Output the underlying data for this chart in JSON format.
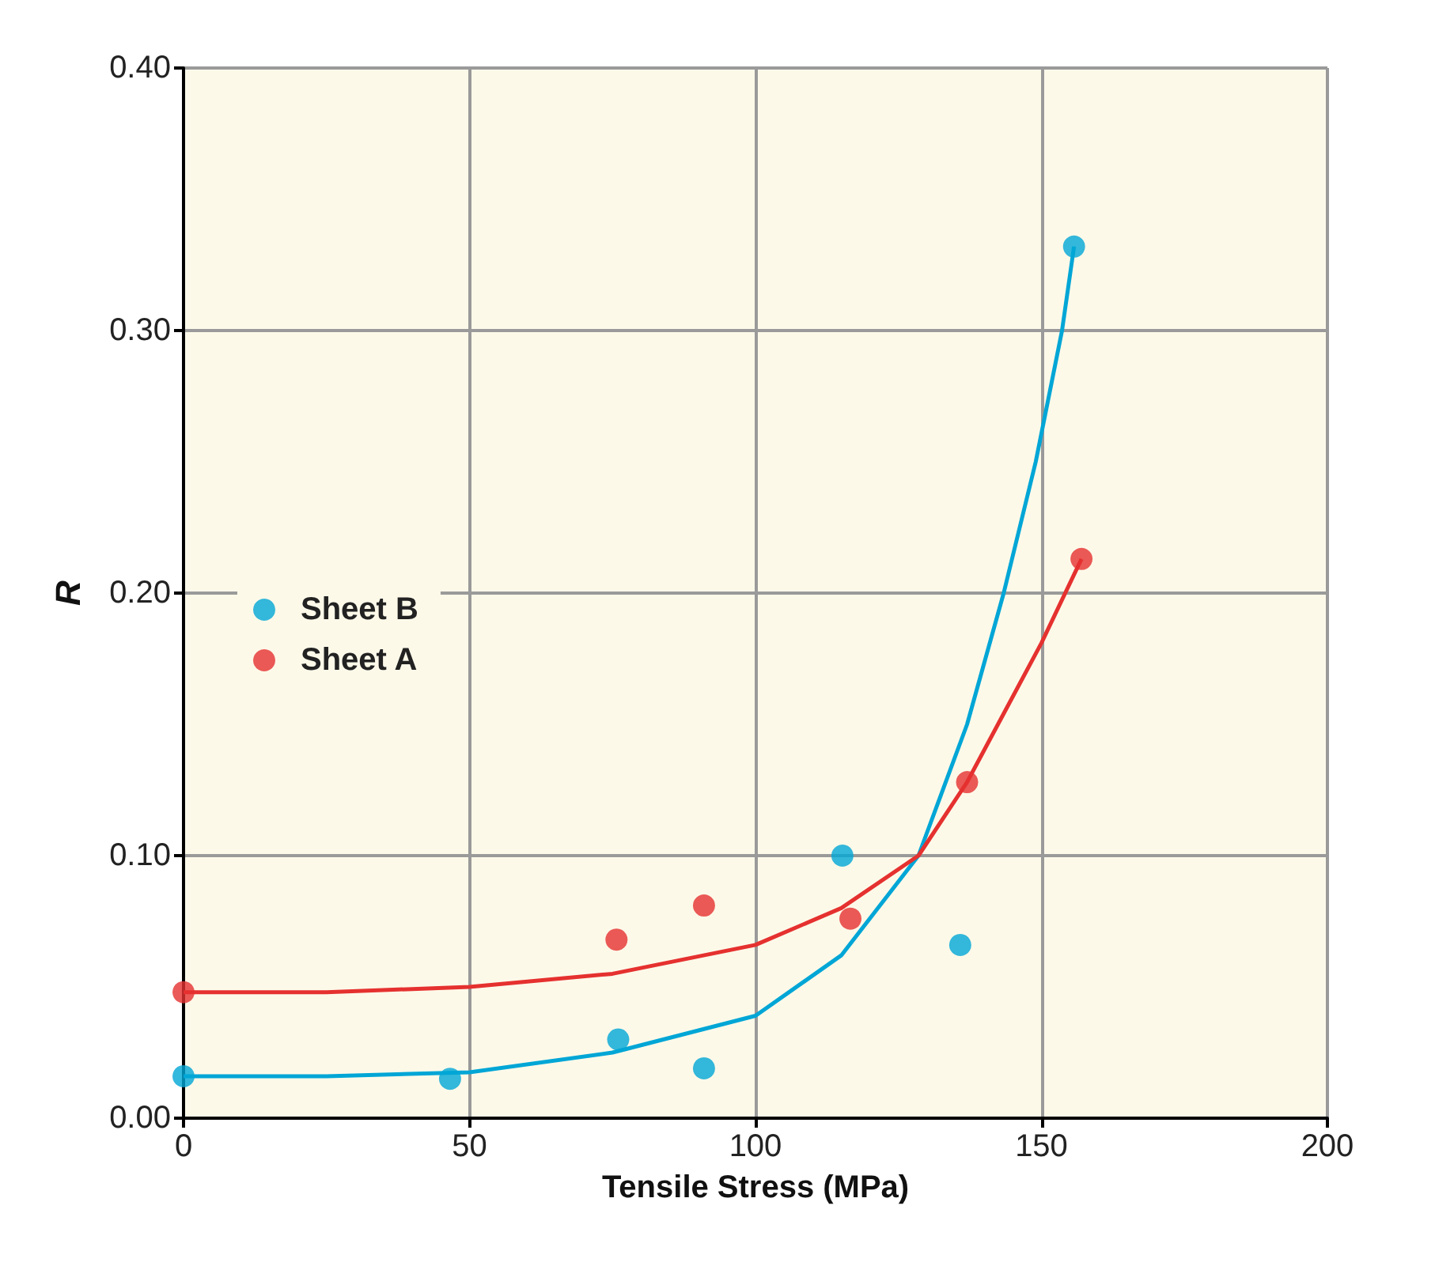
{
  "chart_data": {
    "type": "scatter",
    "xlabel": "Tensile Stress (MPa)",
    "ylabel": "R",
    "xlim": [
      0,
      200
    ],
    "xticks": [
      0,
      50,
      100,
      150,
      200
    ],
    "ylim": [
      0,
      0.4
    ],
    "yticks": [
      {
        "value": 0,
        "label": "0.00"
      },
      {
        "value": 0.1,
        "label": "0.10"
      },
      {
        "value": 0.2,
        "label": "0.20"
      },
      {
        "value": 0.3,
        "label": "0.30"
      },
      {
        "value": 0.4,
        "label": "0.40"
      }
    ],
    "grid": true,
    "legend": "left",
    "marker": "circle",
    "series": [
      {
        "name": "Sheet B",
        "color": "#00a6d6",
        "x": [
          0,
          46.6,
          76,
          91,
          115.2,
          135.8,
          155.7
        ],
        "values": [
          0.016,
          0.015,
          0.03,
          0.019,
          0.1,
          0.066,
          0.332
        ]
      },
      {
        "name": "Sheet A",
        "color": "#e5312f",
        "x": [
          0,
          75.7,
          91,
          116.6,
          137,
          157
        ],
        "values": [
          0.048,
          0.068,
          0.081,
          0.076,
          0.128,
          0.213
        ]
      },
      {
        "type": "line",
        "marker": "none",
        "color": "#00a6d6",
        "x": [
          0,
          25,
          50,
          75,
          100,
          115,
          128.5,
          137,
          143.4,
          149,
          153.6,
          155.7
        ],
        "values": [
          0.016,
          0.016,
          0.0175,
          0.025,
          0.039,
          0.062,
          0.1,
          0.15,
          0.2,
          0.25,
          0.3,
          0.332
        ]
      },
      {
        "type": "line",
        "marker": "none",
        "color": "#e5312f",
        "x": [
          0,
          25,
          50,
          75,
          100,
          115,
          128.5,
          137,
          150,
          157
        ],
        "values": [
          0.048,
          0.048,
          0.05,
          0.055,
          0.066,
          0.08,
          0.1,
          0.128,
          0.181,
          0.213
        ]
      }
    ]
  }
}
